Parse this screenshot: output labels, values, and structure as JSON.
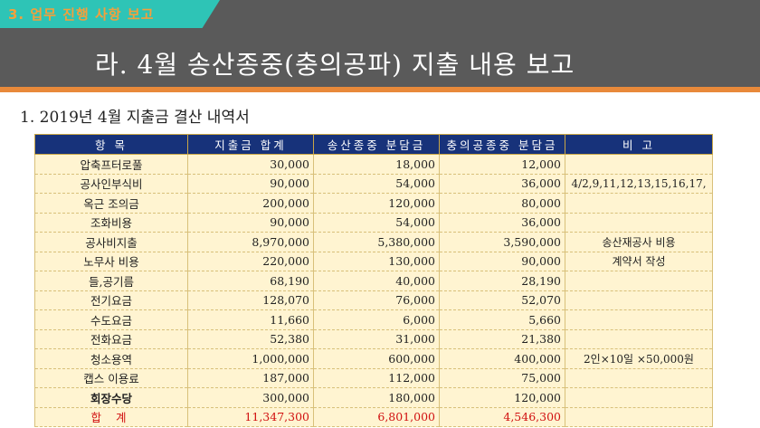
{
  "section_tab": "3. 업무 진행 사항 보고",
  "title": "라. 4월 송산종중(충의공파) 지출 내용 보고",
  "subtitle": "1. 2019년 4월 지출금 결산 내역서",
  "table": {
    "headers": [
      "항 목",
      "지출금 합계",
      "송산종중 분담금",
      "충의공종중 분담금",
      "비 고"
    ],
    "rows": [
      {
        "item": "압축프터로풀",
        "total": "30,000",
        "songsan": "18,000",
        "chungui": "12,000",
        "note": ""
      },
      {
        "item": "공사인부식비",
        "total": "90,000",
        "songsan": "54,000",
        "chungui": "36,000",
        "note": "4/2,9,11,12,13,15,16,17,"
      },
      {
        "item": "옥근 조의금",
        "total": "200,000",
        "songsan": "120,000",
        "chungui": "80,000",
        "note": ""
      },
      {
        "item": "조화비용",
        "total": "90,000",
        "songsan": "54,000",
        "chungui": "36,000",
        "note": ""
      },
      {
        "item": "공사비지출",
        "total": "8,970,000",
        "songsan": "5,380,000",
        "chungui": "3,590,000",
        "note": "송산재공사 비용"
      },
      {
        "item": "노무사 비용",
        "total": "220,000",
        "songsan": "130,000",
        "chungui": "90,000",
        "note": "계약서 작성"
      },
      {
        "item": "들,공기름",
        "total": "68,190",
        "songsan": "40,000",
        "chungui": "28,190",
        "note": ""
      },
      {
        "item": "전기요금",
        "total": "128,070",
        "songsan": "76,000",
        "chungui": "52,070",
        "note": ""
      },
      {
        "item": "수도요금",
        "total": "11,660",
        "songsan": "6,000",
        "chungui": "5,660",
        "note": ""
      },
      {
        "item": "전화요금",
        "total": "52,380",
        "songsan": "31,000",
        "chungui": "21,380",
        "note": ""
      },
      {
        "item": "청소용역",
        "total": "1,000,000",
        "songsan": "600,000",
        "chungui": "400,000",
        "note": "2인×10일 ×50,000원"
      },
      {
        "item": "캡스 이용료",
        "total": "187,000",
        "songsan": "112,000",
        "chungui": "75,000",
        "note": ""
      },
      {
        "item": "회장수당",
        "total": "300,000",
        "songsan": "180,000",
        "chungui": "120,000",
        "note": ""
      }
    ],
    "total": {
      "item": "합 계",
      "total": "11,347,300",
      "songsan": "6,801,000",
      "chungui": "4,546,300",
      "note": ""
    }
  },
  "colors": {
    "header_bg": "#5a5a5a",
    "accent_stripe": "#e8893a",
    "tab_bg": "#2ec4b6",
    "tab_text": "#f2a03d",
    "table_head": "#17327a",
    "table_body": "#fff4d1",
    "total_text": "#d11010"
  }
}
